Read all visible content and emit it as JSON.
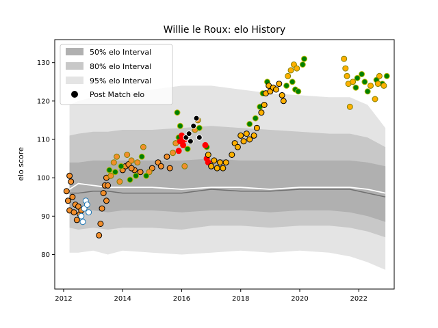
{
  "chart_data": {
    "type": "scatter",
    "title": "Willie le Roux: elo History",
    "xlabel": "",
    "ylabel": "elo score",
    "xlim": [
      2011.7,
      2023.2
    ],
    "ylim": [
      71,
      136
    ],
    "xticks": [
      2012,
      2014,
      2016,
      2018,
      2020,
      2022
    ],
    "yticks": [
      80,
      90,
      100,
      110,
      120,
      130
    ],
    "grid": false,
    "legend": {
      "placement": "top-left",
      "entries": [
        {
          "label": "50% elo Interval",
          "color": "#b0b0b0",
          "kind": "patch"
        },
        {
          "label": "80% elo Interval",
          "color": "#c8c8c8",
          "kind": "patch"
        },
        {
          "label": "95% elo Interval",
          "color": "#e4e4e4",
          "kind": "patch"
        },
        {
          "label": "Post Match elo",
          "color": "#000000",
          "kind": "marker"
        }
      ]
    },
    "bands": {
      "x": [
        2012.2,
        2012.5,
        2013.0,
        2013.5,
        2014.0,
        2015.0,
        2016.0,
        2017.0,
        2018.0,
        2019.0,
        2020.0,
        2021.0,
        2021.7,
        2022.3,
        2022.9
      ],
      "band95_lo": [
        80.5,
        80.5,
        81.0,
        80.0,
        81.0,
        80.5,
        80.0,
        80.5,
        81.0,
        80.5,
        81.0,
        80.5,
        79.5,
        78.0,
        76.0
      ],
      "band95_hi": [
        119.0,
        120.0,
        121.0,
        122.0,
        122.0,
        123.0,
        124.0,
        124.0,
        123.0,
        122.0,
        121.5,
        121.0,
        121.0,
        119.0,
        113.0
      ],
      "band80_lo": [
        87.0,
        86.5,
        87.0,
        86.5,
        87.0,
        87.0,
        86.5,
        87.5,
        87.5,
        87.0,
        87.5,
        87.5,
        87.0,
        86.0,
        84.5
      ],
      "band80_hi": [
        111.0,
        111.5,
        112.0,
        112.0,
        112.5,
        112.5,
        113.0,
        113.5,
        113.0,
        112.5,
        112.0,
        111.5,
        111.5,
        110.5,
        108.0
      ],
      "band50_lo": [
        91.5,
        91.5,
        91.5,
        91.0,
        91.5,
        91.5,
        91.0,
        91.5,
        91.5,
        91.0,
        91.5,
        91.5,
        91.0,
        90.0,
        88.5
      ],
      "band50_hi": [
        104.0,
        104.0,
        104.5,
        104.5,
        104.5,
        104.5,
        104.5,
        105.0,
        104.5,
        104.5,
        104.5,
        104.5,
        104.5,
        104.0,
        103.0
      ],
      "median": [
        96.0,
        96.0,
        96.5,
        96.5,
        96.0,
        96.0,
        96.0,
        97.0,
        96.5,
        96.5,
        97.0,
        97.0,
        97.0,
        96.0,
        95.0
      ],
      "mean": [
        97.0,
        98.5,
        98.0,
        97.5,
        97.5,
        97.5,
        97.0,
        97.5,
        97.5,
        97.0,
        97.5,
        97.5,
        97.5,
        97.0,
        96.0
      ]
    },
    "series": [
      {
        "fill": "#f28e2b",
        "edge": "#000000",
        "points": [
          [
            2012.1,
            96.5
          ],
          [
            2012.15,
            94
          ],
          [
            2012.2,
            91.5
          ],
          [
            2012.25,
            99
          ],
          [
            2012.3,
            95
          ],
          [
            2012.35,
            91
          ],
          [
            2012.4,
            93
          ],
          [
            2012.45,
            89
          ],
          [
            2012.5,
            92.5
          ],
          [
            2012.55,
            90.5
          ],
          [
            2013.2,
            85
          ],
          [
            2013.25,
            88
          ],
          [
            2013.3,
            92
          ],
          [
            2013.35,
            96
          ],
          [
            2013.4,
            98
          ],
          [
            2013.45,
            100
          ],
          [
            2013.5,
            98
          ],
          [
            2014.0,
            102
          ],
          [
            2014.1,
            103
          ],
          [
            2014.2,
            103.5
          ],
          [
            2014.4,
            102
          ],
          [
            2014.6,
            101.5
          ],
          [
            2015.0,
            102.5
          ],
          [
            2015.2,
            104
          ],
          [
            2015.3,
            103
          ],
          [
            2015.5,
            105.5
          ],
          [
            2015.6,
            102.5
          ],
          [
            2012.2,
            100.5
          ],
          [
            2012.6,
            91.5
          ],
          [
            2013.45,
            94
          ],
          [
            2014.3,
            102.5
          ]
        ]
      },
      {
        "fill": "#f28e2b",
        "edge": "#808000",
        "points": [
          [
            2013.6,
            100.5
          ],
          [
            2013.7,
            104
          ],
          [
            2013.8,
            105.5
          ],
          [
            2013.9,
            99
          ],
          [
            2014.15,
            106
          ],
          [
            2014.3,
            104.5
          ],
          [
            2014.5,
            104
          ],
          [
            2014.7,
            108
          ],
          [
            2014.9,
            101.5
          ],
          [
            2015.7,
            106.5
          ],
          [
            2015.8,
            109
          ],
          [
            2016.1,
            103
          ],
          [
            2016.3,
            109.5
          ],
          [
            2016.45,
            112.5
          ],
          [
            2016.55,
            115
          ]
        ]
      },
      {
        "fill": "#008000",
        "edge": "#b8b800",
        "points": [
          [
            2013.55,
            102
          ],
          [
            2013.75,
            101.5
          ],
          [
            2013.95,
            103
          ],
          [
            2014.25,
            99.5
          ],
          [
            2014.45,
            100.5
          ],
          [
            2014.65,
            105.5
          ],
          [
            2014.8,
            100.5
          ],
          [
            2015.9,
            110.5
          ],
          [
            2015.95,
            113.5
          ],
          [
            2015.85,
            117
          ],
          [
            2016.2,
            107.5
          ],
          [
            2016.6,
            113
          ],
          [
            2016.85,
            108
          ],
          [
            2018.3,
            114
          ],
          [
            2018.5,
            115.5
          ],
          [
            2018.65,
            118.5
          ],
          [
            2018.75,
            122
          ],
          [
            2018.9,
            125
          ],
          [
            2019.55,
            124
          ],
          [
            2019.75,
            125
          ],
          [
            2019.85,
            123
          ],
          [
            2019.95,
            122.5
          ],
          [
            2020.1,
            129.5
          ],
          [
            2020.15,
            131
          ],
          [
            2021.9,
            123.5
          ],
          [
            2021.95,
            126
          ],
          [
            2022.1,
            127
          ],
          [
            2022.2,
            125
          ],
          [
            2022.3,
            122.5
          ],
          [
            2022.6,
            125.5
          ],
          [
            2022.8,
            124.5
          ],
          [
            2022.95,
            126.5
          ]
        ]
      },
      {
        "fill": "#ffffff",
        "edge": "#1f77b4",
        "points": [
          [
            2012.6,
            90
          ],
          [
            2012.65,
            88.5
          ],
          [
            2012.7,
            92
          ],
          [
            2012.75,
            94
          ],
          [
            2012.8,
            93
          ],
          [
            2012.85,
            91
          ]
        ]
      },
      {
        "fill": "#ff0000",
        "edge": "#ff0000",
        "points": [
          [
            2015.9,
            107
          ],
          [
            2015.95,
            109.5
          ],
          [
            2016.0,
            111
          ],
          [
            2016.05,
            108.5
          ],
          [
            2016.1,
            110
          ],
          [
            2016.8,
            108.5
          ],
          [
            2016.85,
            105
          ],
          [
            2016.9,
            104
          ]
        ]
      },
      {
        "fill": "#000000",
        "edge": "#ffffff",
        "points": [
          [
            2016.15,
            110.5
          ],
          [
            2016.25,
            111.5
          ],
          [
            2016.3,
            109.5
          ],
          [
            2016.4,
            113.5
          ],
          [
            2016.5,
            115.5
          ],
          [
            2016.6,
            110.5
          ]
        ]
      },
      {
        "fill": "#ffb000",
        "edge": "#000000",
        "points": [
          [
            2016.9,
            106
          ],
          [
            2017.0,
            103
          ],
          [
            2017.1,
            104.5
          ],
          [
            2017.2,
            102.5
          ],
          [
            2017.3,
            104
          ],
          [
            2017.4,
            102.5
          ],
          [
            2017.5,
            104
          ],
          [
            2017.7,
            106
          ],
          [
            2017.8,
            109
          ],
          [
            2017.9,
            108
          ],
          [
            2018.0,
            111
          ],
          [
            2018.1,
            109.5
          ],
          [
            2018.2,
            111.5
          ],
          [
            2018.3,
            110
          ],
          [
            2018.45,
            111
          ],
          [
            2018.55,
            113
          ],
          [
            2018.7,
            117
          ],
          [
            2018.8,
            119
          ],
          [
            2018.85,
            122
          ],
          [
            2018.95,
            124
          ],
          [
            2019.0,
            122.5
          ],
          [
            2019.1,
            123.5
          ],
          [
            2019.2,
            123
          ],
          [
            2019.3,
            124.5
          ],
          [
            2019.4,
            121.5
          ],
          [
            2019.45,
            120
          ]
        ]
      },
      {
        "fill": "#ffb000",
        "edge": "#808000",
        "points": [
          [
            2019.6,
            126.5
          ],
          [
            2019.7,
            128
          ],
          [
            2019.8,
            129.5
          ],
          [
            2019.9,
            128.5
          ],
          [
            2021.5,
            131
          ],
          [
            2021.55,
            128.5
          ],
          [
            2021.6,
            126.5
          ],
          [
            2021.65,
            124.5
          ],
          [
            2021.7,
            118.5
          ],
          [
            2021.8,
            125
          ],
          [
            2022.4,
            124
          ],
          [
            2022.55,
            120.5
          ],
          [
            2022.65,
            124.5
          ],
          [
            2022.7,
            126.5
          ],
          [
            2022.85,
            124
          ]
        ]
      }
    ]
  }
}
